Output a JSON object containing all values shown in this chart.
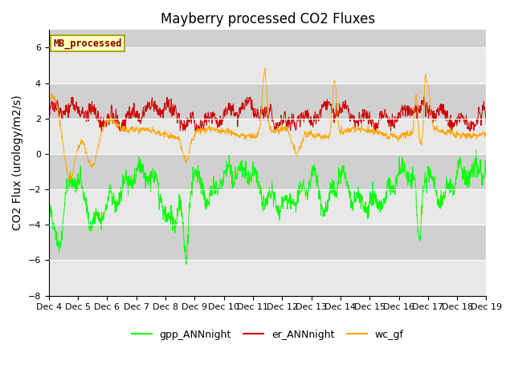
{
  "title": "Mayberry processed CO2 Fluxes",
  "ylabel": "CO2 Flux (urology/m2/s)",
  "ylim": [
    -8,
    7
  ],
  "yticks": [
    -8,
    -6,
    -4,
    -2,
    0,
    2,
    4,
    6
  ],
  "n_days": 15,
  "x_tick_labels": [
    "Dec 4",
    "Dec 5",
    "Dec 6",
    "Dec 7",
    "Dec 8",
    "Dec 9",
    "Dec 10",
    "Dec 11",
    "Dec 12",
    "Dec 13",
    "Dec 14",
    "Dec 15",
    "Dec 16",
    "Dec 17",
    "Dec 18",
    "Dec 19"
  ],
  "legend_label": "MB_processed",
  "series_labels": [
    "gpp_ANNnight",
    "er_ANNnight",
    "wc_gf"
  ],
  "series_colors": [
    "#00ff00",
    "#cc0000",
    "#ffa500"
  ],
  "bg_dark": "#d0d0d0",
  "bg_light": "#e8e8e8",
  "title_fontsize": 12,
  "axis_label_fontsize": 10,
  "tick_fontsize": 8
}
